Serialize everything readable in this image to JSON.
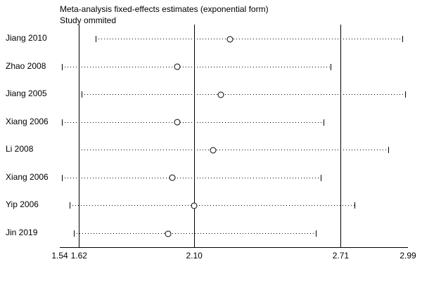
{
  "chart_data": {
    "type": "scatter",
    "subtype": "forest-sensitivity-plot",
    "title": "Meta-analysis fixed-effects estimates (exponential form)",
    "subtitle": "Study ommited",
    "xlabel": "",
    "ylabel": "",
    "xlim": [
      1.54,
      2.99
    ],
    "x_ticks": [
      "1.54",
      "1.62",
      "2.10",
      "2.71",
      "2.99"
    ],
    "reference_lines": [
      1.62,
      2.1,
      2.71
    ],
    "grid": false,
    "legend": "none",
    "marker_style": "open-circle",
    "line_style": "dotted-with-caps",
    "colors": {
      "foreground": "#000000",
      "background": "#ffffff"
    },
    "studies": [
      {
        "label": "Jiang 2010",
        "estimate": 2.25,
        "lower": 1.69,
        "upper": 2.97
      },
      {
        "label": "Zhao 2008",
        "estimate": 2.03,
        "lower": 1.55,
        "upper": 2.67
      },
      {
        "label": "Jiang 2005",
        "estimate": 2.21,
        "lower": 1.63,
        "upper": 2.98
      },
      {
        "label": "Xiang 2006",
        "estimate": 2.03,
        "lower": 1.55,
        "upper": 2.64
      },
      {
        "label": "Li 2008",
        "estimate": 2.18,
        "lower": 1.62,
        "upper": 2.91
      },
      {
        "label": "Xiang 2006",
        "estimate": 2.01,
        "lower": 1.55,
        "upper": 2.63
      },
      {
        "label": "Yip 2006",
        "estimate": 2.1,
        "lower": 1.58,
        "upper": 2.77
      },
      {
        "label": "Jin 2019",
        "estimate": 1.99,
        "lower": 1.6,
        "upper": 2.61
      }
    ]
  }
}
